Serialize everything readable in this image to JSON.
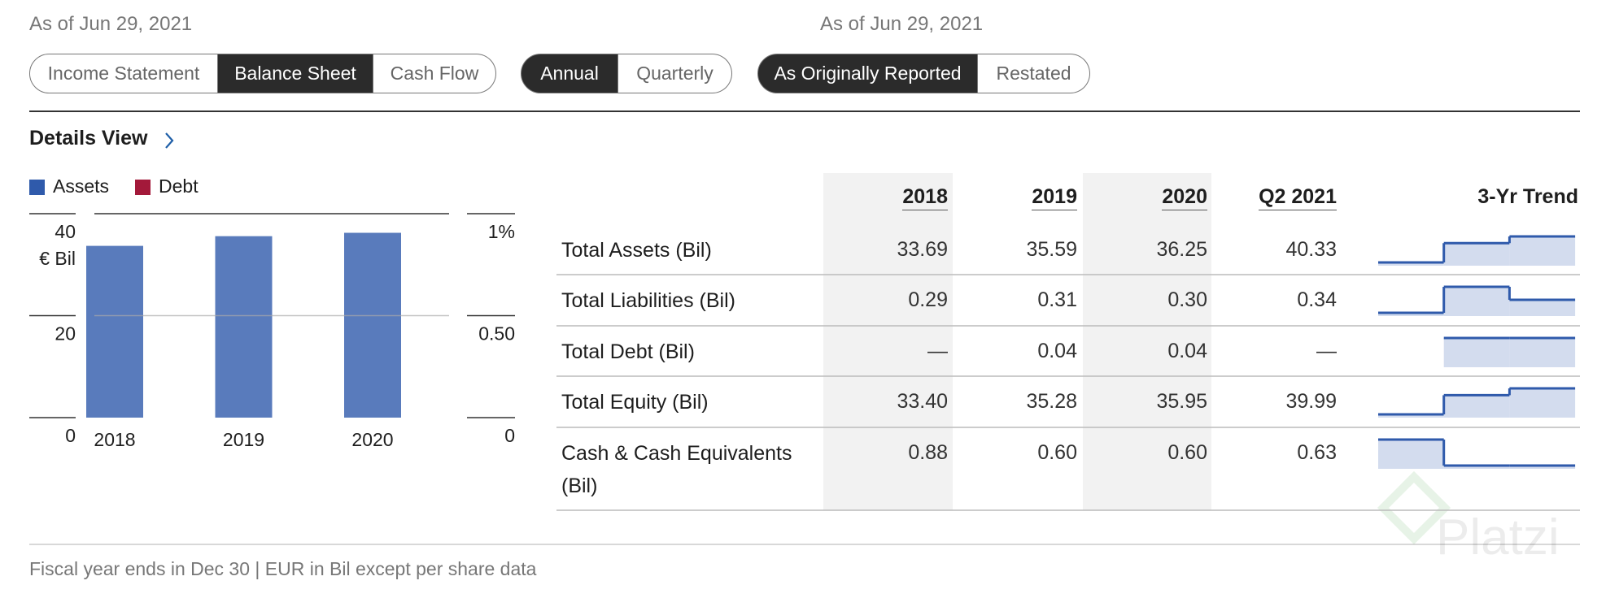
{
  "header": {
    "left_date": "As of Jun 29, 2021",
    "right_date": "As of Jun 29, 2021"
  },
  "tabs": [
    [
      {
        "label": "Income Statement",
        "selected": false
      },
      {
        "label": "Balance Sheet",
        "selected": true
      },
      {
        "label": "Cash Flow",
        "selected": false
      }
    ],
    [
      {
        "label": "Annual",
        "selected": true
      },
      {
        "label": "Quarterly",
        "selected": false
      }
    ],
    [
      {
        "label": "As Originally Reported",
        "selected": true
      },
      {
        "label": "Restated",
        "selected": false
      }
    ]
  ],
  "details_view": "Details View",
  "chart_data": {
    "type": "bar",
    "categories": [
      "2018",
      "2019",
      "2020"
    ],
    "series": [
      {
        "name": "Assets",
        "color": "#2f5aab",
        "values": [
          33.69,
          35.59,
          36.25
        ]
      },
      {
        "name": "Debt",
        "color": "#a3193a",
        "values": [
          null,
          null,
          null
        ],
        "axis": "y2"
      }
    ],
    "ylim": [
      0,
      40
    ],
    "yticks": [
      0,
      20,
      40
    ],
    "y_unit": "€ Bil",
    "y2lim": [
      0,
      1
    ],
    "y2ticks": [
      0,
      {
        "value": 0.5,
        "label": "0.50"
      },
      {
        "value": 1,
        "label": "1%"
      }
    ],
    "grid": true
  },
  "table": {
    "columns": [
      "2018",
      "2019",
      "2020",
      "Q2 2021"
    ],
    "trend_header": "3-Yr Trend",
    "rows": [
      {
        "label": "Total Assets (Bil)",
        "values": [
          33.69,
          35.59,
          36.25,
          40.33
        ],
        "value_labels": [
          "33.69",
          "35.59",
          "36.25",
          "40.33"
        ]
      },
      {
        "label": "Total Liabilities (Bil)",
        "values": [
          0.29,
          0.31,
          0.3,
          0.34
        ],
        "value_labels": [
          "0.29",
          "0.31",
          "0.30",
          "0.34"
        ]
      },
      {
        "label": "Total Debt (Bil)",
        "values": [
          null,
          0.04,
          0.04,
          null
        ],
        "value_labels": [
          "—",
          "0.04",
          "0.04",
          "—"
        ]
      },
      {
        "label": "Total Equity (Bil)",
        "values": [
          33.4,
          35.28,
          35.95,
          39.99
        ],
        "value_labels": [
          "33.40",
          "35.28",
          "35.95",
          "39.99"
        ]
      },
      {
        "label": "Cash & Cash Equivalents (Bil)",
        "values": [
          0.88,
          0.6,
          0.6,
          0.63
        ],
        "value_labels": [
          "0.88",
          "0.60",
          "0.60",
          "0.63"
        ]
      }
    ]
  },
  "footer": "Fiscal year ends in Dec 30 | EUR in Bil except per share data",
  "watermark": "Platzi"
}
